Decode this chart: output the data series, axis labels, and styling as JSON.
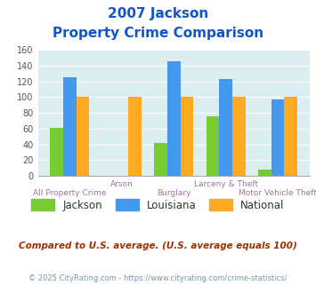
{
  "title_line1": "2007 Jackson",
  "title_line2": "Property Crime Comparison",
  "categories": [
    "All Property Crime",
    "Arson",
    "Burglary",
    "Larceny & Theft",
    "Motor Vehicle Theft"
  ],
  "jackson": [
    61,
    0,
    42,
    76,
    8
  ],
  "louisiana": [
    125,
    0,
    145,
    123,
    97
  ],
  "national": [
    100,
    100,
    100,
    100,
    100
  ],
  "jackson_color": "#77cc33",
  "louisiana_color": "#4499ee",
  "national_color": "#ffaa22",
  "plot_bg": "#ddeef0",
  "ylim": [
    0,
    160
  ],
  "yticks": [
    0,
    20,
    40,
    60,
    80,
    100,
    120,
    140,
    160
  ],
  "title_color": "#1155cc",
  "xlabel_color": "#997799",
  "legend_label_color": "#333333",
  "footnote1": "Compared to U.S. average. (U.S. average equals 100)",
  "footnote2": "© 2025 CityRating.com - https://www.cityrating.com/crime-statistics/",
  "footnote1_color": "#993300",
  "footnote2_color": "#7799aa",
  "label_top": [
    "",
    "Arson",
    "",
    "Larceny & Theft",
    ""
  ],
  "label_bot": [
    "All Property Crime",
    "",
    "Burglary",
    "",
    "Motor Vehicle Theft"
  ]
}
